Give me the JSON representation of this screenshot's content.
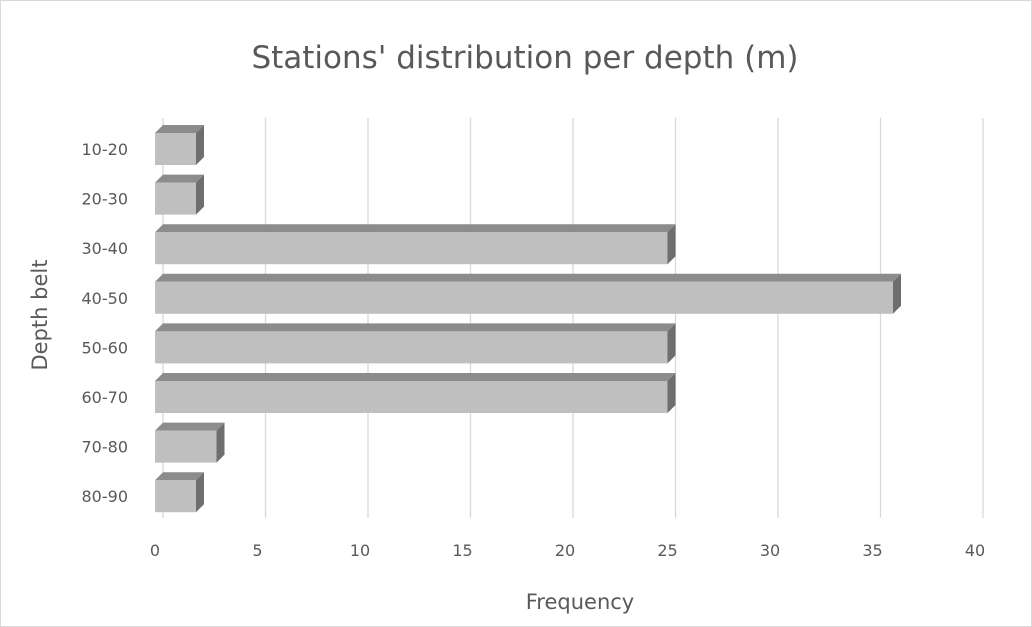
{
  "chart_data": {
    "type": "bar",
    "orientation": "horizontal",
    "style": "3d",
    "title": "Stations' distribution per depth (m)",
    "xlabel": "Frequency",
    "ylabel": "Depth belt",
    "categories": [
      "10-20",
      "20-30",
      "30-40",
      "40-50",
      "50-60",
      "60-70",
      "70-80",
      "80-90"
    ],
    "values": [
      2,
      2,
      25,
      36,
      25,
      25,
      3,
      2
    ],
    "xlim": [
      0,
      40
    ],
    "xticks": [
      "0",
      "5",
      "10",
      "15",
      "20",
      "25",
      "30",
      "35",
      "40"
    ],
    "grid": true,
    "legend": "none",
    "colors": {
      "bar_face": "#bfbfbf",
      "bar_top": "#8c8c8c",
      "bar_side": "#6e6e6e",
      "text": "#595959",
      "grid": "#d9d9d9"
    }
  }
}
